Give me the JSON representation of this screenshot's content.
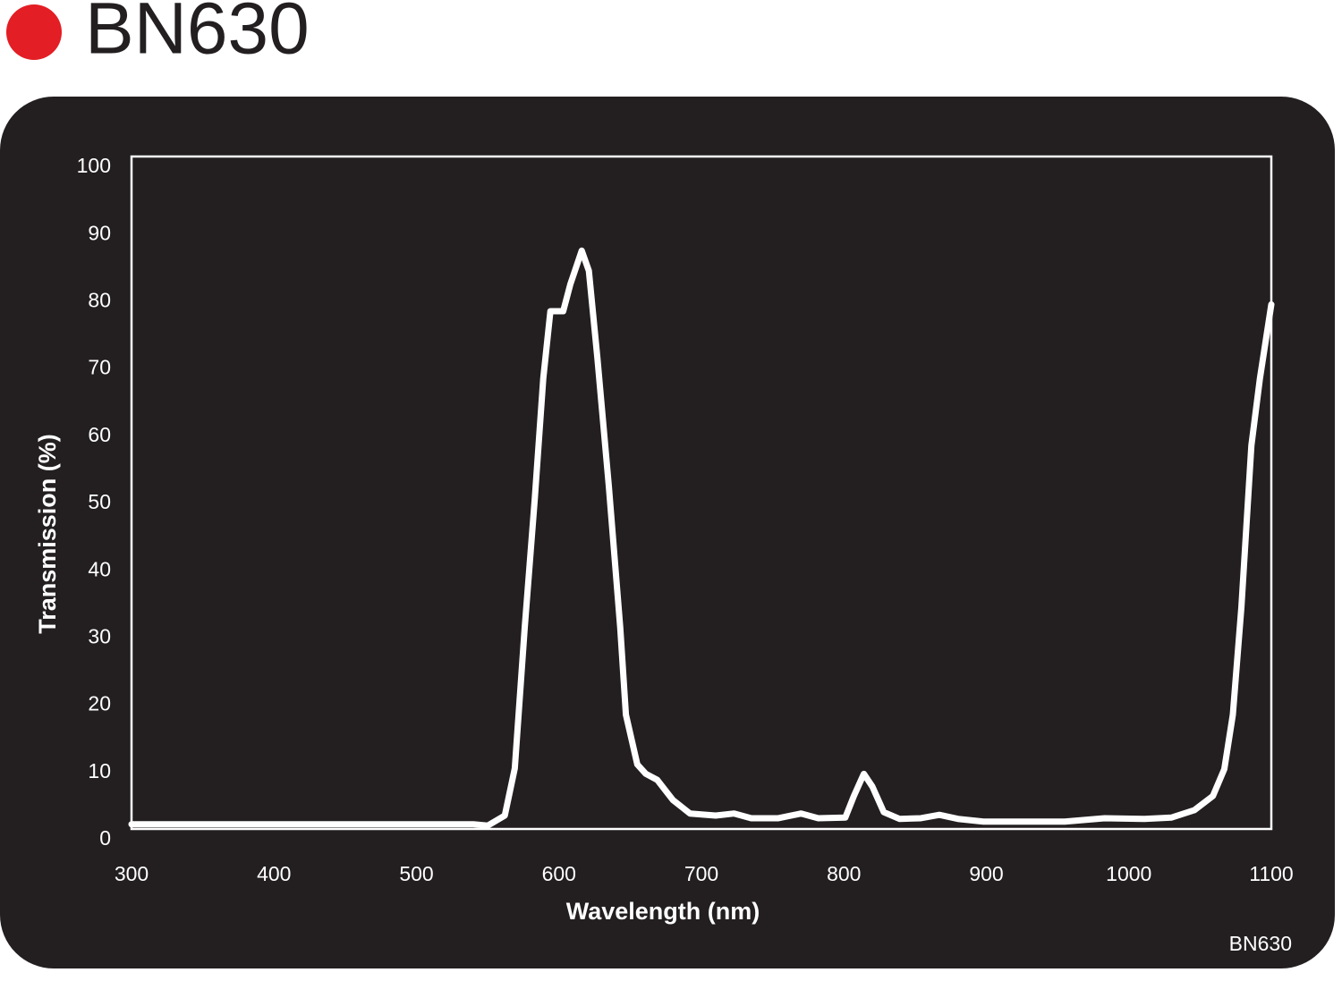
{
  "chart_data": {
    "type": "line",
    "title": "BN630",
    "footnote": "BN630",
    "xlabel": "Wavelength (nm)",
    "ylabel": "Transmission (%)",
    "marker_color": "#e31e24",
    "background": "#231f20",
    "color": "#ffffff",
    "xlim": [
      300,
      1100
    ],
    "ylim": [
      0,
      100
    ],
    "xticks": [
      300,
      400,
      500,
      600,
      700,
      800,
      900,
      1000,
      1100
    ],
    "yticks": [
      0,
      10,
      20,
      30,
      40,
      50,
      60,
      70,
      80,
      90,
      100
    ],
    "x": [
      300,
      350,
      400,
      450,
      500,
      540,
      550,
      562,
      569,
      576,
      583,
      589,
      594,
      603,
      608,
      616,
      621,
      627,
      635,
      643,
      647,
      655,
      661,
      669,
      680,
      692,
      710,
      723,
      735,
      754,
      770,
      782,
      801,
      807,
      814,
      820,
      828,
      839,
      854,
      867,
      880,
      898,
      930,
      955,
      983,
      1011,
      1030,
      1046,
      1059,
      1067,
      1073,
      1079,
      1086,
      1092,
      1100
    ],
    "series": [
      {
        "name": "BN630",
        "color": "#ffffff",
        "values": [
          0.7,
          0.7,
          0.7,
          0.7,
          0.7,
          0.7,
          0.5,
          2,
          9,
          30,
          49,
          67,
          77,
          77,
          81,
          86,
          83,
          70,
          51,
          30,
          17,
          9.6,
          8.2,
          7.3,
          4.3,
          2.3,
          2,
          2.3,
          1.6,
          1.6,
          2.3,
          1.6,
          1.7,
          4.9,
          8.2,
          6.3,
          2.5,
          1.5,
          1.6,
          2.1,
          1.5,
          1.1,
          1.1,
          1.1,
          1.6,
          1.5,
          1.7,
          2.8,
          4.9,
          8.9,
          17,
          33,
          57,
          67,
          78
        ]
      }
    ]
  }
}
